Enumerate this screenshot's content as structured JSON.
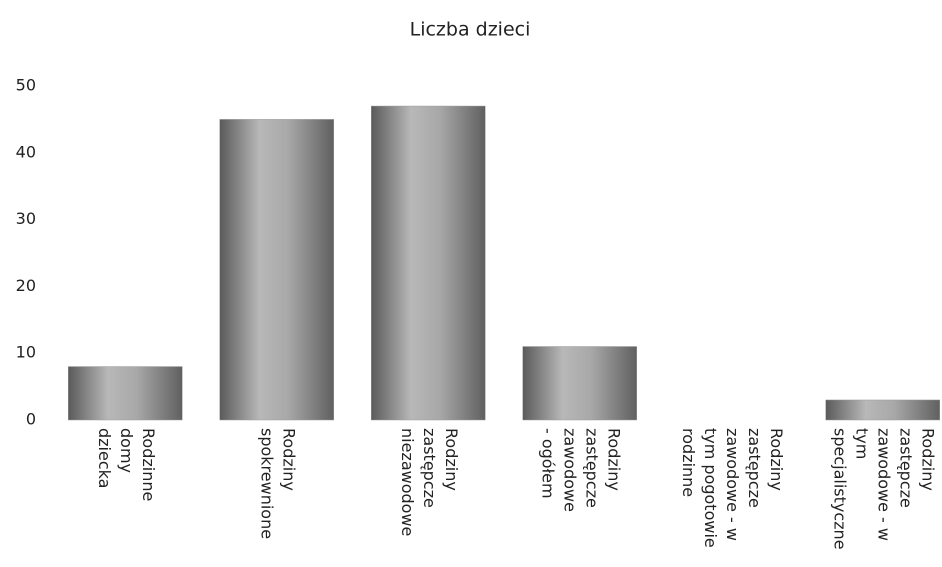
{
  "chart_data": {
    "type": "bar",
    "title": "Liczba dzieci",
    "categories": [
      [
        "Rodzinne",
        "domy",
        "dziecka"
      ],
      [
        "Rodziny",
        "spokrewnione"
      ],
      [
        "Rodziny",
        "zastępcze",
        "niezawodowe"
      ],
      [
        "Rodziny",
        "zastępcze",
        "zawodowe",
        "- ogółem"
      ],
      [
        "Rodziny",
        "zastępcze",
        "zawodowe - w",
        "tym pogotowie",
        "rodzinne"
      ],
      [
        "Rodziny",
        "zastępcze",
        "zawodowe - w",
        "tym",
        "specjalistyczne"
      ]
    ],
    "values": [
      8,
      45,
      47,
      11,
      0,
      3
    ],
    "color": "#999999",
    "ylim": [
      0,
      50
    ],
    "yticks": [
      0,
      10,
      20,
      30,
      40,
      50
    ],
    "grid": false
  }
}
